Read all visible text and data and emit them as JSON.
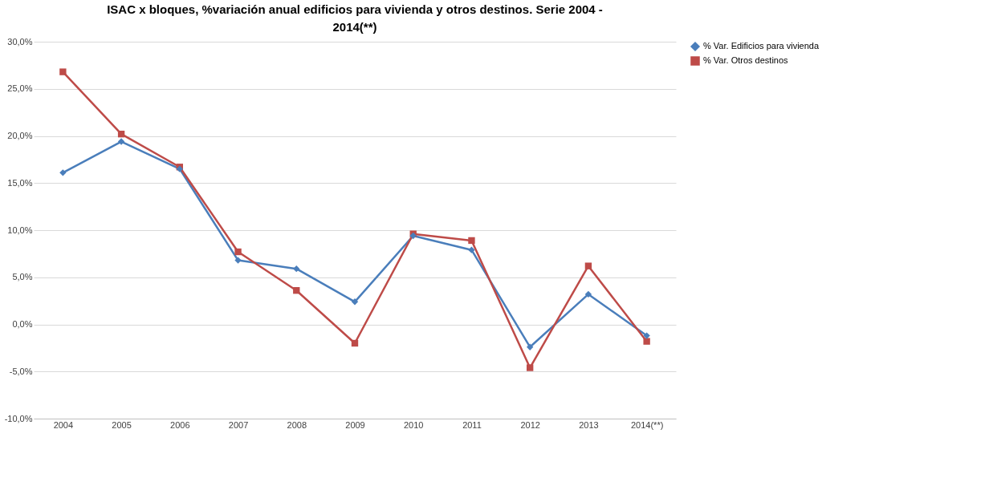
{
  "chart_data": {
    "type": "line",
    "title": "ISAC x bloques, %variación anual edificios para vivienda y otros destinos. Serie 2004 - 2014(**)",
    "categories": [
      "2004",
      "2005",
      "2006",
      "2007",
      "2008",
      "2009",
      "2010",
      "2011",
      "2012",
      "2013",
      "2014(**)"
    ],
    "series": [
      {
        "name": "% Var. Edificios para vivienda",
        "color": "#4a7ebb",
        "marker": "diamond",
        "values": [
          16.1,
          19.4,
          16.5,
          6.8,
          5.9,
          2.4,
          9.4,
          7.9,
          -2.4,
          3.2,
          -1.2
        ]
      },
      {
        "name": "% Var. Otros destinos",
        "color": "#be4b48",
        "marker": "square",
        "values": [
          26.8,
          20.2,
          16.7,
          7.7,
          3.6,
          -2.0,
          9.6,
          8.9,
          -4.6,
          6.2,
          -1.8
        ]
      }
    ],
    "ylim": [
      -10,
      30
    ],
    "yticks": [
      {
        "value": -10,
        "label": "-10,0%"
      },
      {
        "value": -5,
        "label": "-5,0%"
      },
      {
        "value": 0,
        "label": "0,0%"
      },
      {
        "value": 5,
        "label": "5,0%"
      },
      {
        "value": 10,
        "label": "10,0%"
      },
      {
        "value": 15,
        "label": "15,0%"
      },
      {
        "value": 20,
        "label": "20,0%"
      },
      {
        "value": 25,
        "label": "25,0%"
      },
      {
        "value": 30,
        "label": "30,0%"
      }
    ],
    "grid": "y",
    "legend": "right"
  }
}
